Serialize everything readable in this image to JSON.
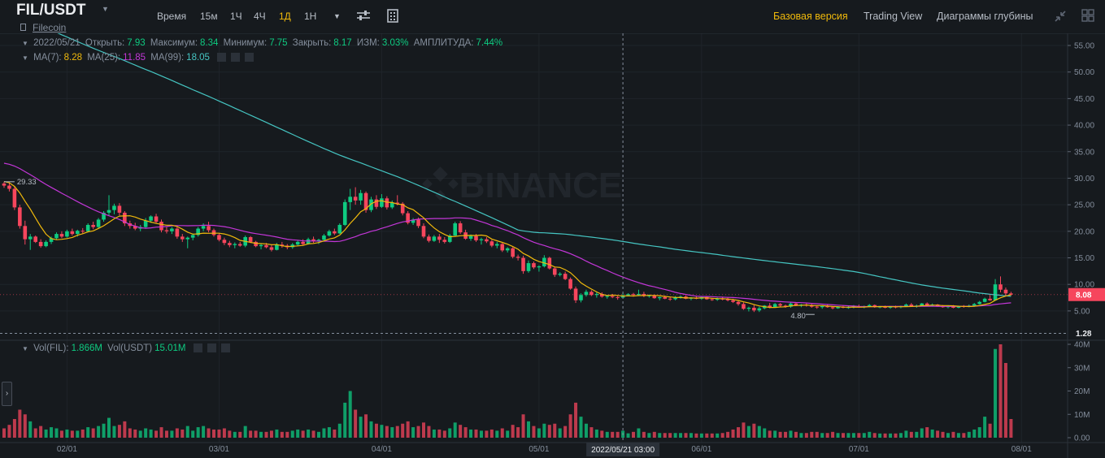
{
  "header": {
    "pair": "FIL/USDT",
    "coin_name": "Filecoin",
    "intervals": [
      "Время",
      "15м",
      "1Ч",
      "4Ч",
      "1Д",
      "1Н"
    ],
    "active_interval": "1Д",
    "views": [
      "Базовая версия",
      "Trading View",
      "Диаграммы глубины"
    ],
    "active_view": "Базовая версия"
  },
  "ohlc_legend": {
    "date": "2022/05/21",
    "open_label": "Открыть:",
    "open": "7.93",
    "high_label": "Максимум:",
    "high": "8.34",
    "low_label": "Минимум:",
    "low": "7.75",
    "close_label": "Закрыть:",
    "close": "8.17",
    "change_label": "ИЗМ:",
    "change": "3.03%",
    "amplitude_label": "АМПЛИТУДА:",
    "amplitude": "7.44%"
  },
  "ma_legend": {
    "ma7_label": "MA(7):",
    "ma7": "8.28",
    "ma25_label": "MA(25):",
    "ma25": "11.85",
    "ma99_label": "MA(99):",
    "ma99": "18.05"
  },
  "vol_legend": {
    "fil_label": "Vol(FIL):",
    "fil": "1.866M",
    "usdt_label": "Vol(USDT)",
    "usdt": "15.01M"
  },
  "watermark": "BINANCE",
  "colors": {
    "up": "#0ecb81",
    "down": "#f6465d",
    "ma7": "#f0b90b",
    "ma25": "#c336d8",
    "ma99": "#45c5c2",
    "accent": "#f0b90b",
    "background": "#161a1e"
  },
  "chart_data": {
    "type": "candlestick",
    "symbol": "FIL/USDT",
    "interval": "1D",
    "price_axis": {
      "min": 0,
      "max": 55,
      "ticks": [
        "55.00",
        "50.00",
        "45.00",
        "40.00",
        "35.00",
        "30.00",
        "25.00",
        "20.00",
        "15.00",
        "10.00",
        "5.00"
      ]
    },
    "volume_axis": {
      "max": 40,
      "unit": "M",
      "ticks": [
        "40M",
        "30M",
        "20M",
        "10M",
        "0.00"
      ]
    },
    "x_ticks": [
      "02/01",
      "03/01",
      "04/01",
      "05/01",
      "06/01",
      "07/01",
      "08/01"
    ],
    "crosshair_date": "2022/05/21 03:00",
    "last_price": "8.08",
    "low_line_value": "1.28",
    "annotations": [
      {
        "text": "29.33"
      },
      {
        "text": "4.80"
      }
    ],
    "candles": [
      [
        29.0,
        29.33,
        28.2,
        28.6,
        4.0
      ],
      [
        28.6,
        29.1,
        27.5,
        28.0,
        5.5
      ],
      [
        28.0,
        28.5,
        24.0,
        24.5,
        8.0
      ],
      [
        24.5,
        25.0,
        20.5,
        21.0,
        12.0
      ],
      [
        21.0,
        22.0,
        17.5,
        18.5,
        10.0
      ],
      [
        18.5,
        19.5,
        16.5,
        19.0,
        7.0
      ],
      [
        19.0,
        19.2,
        17.8,
        18.0,
        4.0
      ],
      [
        18.0,
        18.5,
        16.9,
        17.2,
        5.0
      ],
      [
        17.2,
        18.3,
        17.0,
        18.0,
        3.5
      ],
      [
        18.0,
        19.0,
        17.6,
        18.7,
        4.5
      ],
      [
        18.7,
        19.8,
        18.4,
        19.5,
        4.0
      ],
      [
        19.5,
        20.0,
        18.7,
        19.0,
        3.0
      ],
      [
        19.0,
        20.3,
        18.8,
        20.0,
        3.5
      ],
      [
        20.0,
        20.5,
        19.2,
        19.5,
        3.0
      ],
      [
        19.5,
        20.3,
        19.0,
        20.1,
        3.0
      ],
      [
        20.1,
        20.6,
        19.6,
        20.0,
        3.5
      ],
      [
        20.0,
        21.5,
        19.8,
        21.2,
        4.5
      ],
      [
        21.2,
        21.8,
        20.4,
        20.8,
        4.0
      ],
      [
        20.8,
        22.5,
        20.5,
        22.2,
        5.0
      ],
      [
        22.2,
        23.8,
        21.8,
        23.5,
        6.0
      ],
      [
        23.5,
        26.8,
        23.0,
        24.0,
        8.5
      ],
      [
        24.0,
        25.2,
        23.2,
        24.8,
        5.0
      ],
      [
        24.8,
        25.3,
        23.0,
        23.5,
        5.5
      ],
      [
        23.5,
        23.8,
        21.0,
        21.5,
        7.0
      ],
      [
        21.5,
        22.0,
        20.5,
        21.0,
        4.0
      ],
      [
        21.0,
        21.6,
        20.2,
        20.5,
        3.5
      ],
      [
        20.5,
        21.2,
        20.0,
        20.8,
        3.0
      ],
      [
        20.8,
        22.5,
        20.6,
        22.0,
        4.0
      ],
      [
        22.0,
        23.0,
        21.6,
        22.8,
        3.5
      ],
      [
        22.8,
        23.3,
        21.5,
        21.8,
        3.0
      ],
      [
        21.8,
        22.2,
        19.8,
        20.2,
        4.5
      ],
      [
        20.2,
        20.8,
        19.6,
        20.0,
        3.0
      ],
      [
        20.0,
        20.8,
        19.5,
        20.5,
        3.0
      ],
      [
        20.5,
        20.8,
        18.6,
        19.0,
        4.0
      ],
      [
        19.0,
        19.5,
        18.0,
        18.5,
        3.5
      ],
      [
        18.5,
        19.0,
        16.8,
        18.8,
        5.0
      ],
      [
        18.8,
        19.6,
        18.3,
        19.3,
        3.0
      ],
      [
        19.3,
        20.8,
        19.0,
        20.5,
        4.5
      ],
      [
        20.5,
        21.5,
        20.0,
        21.0,
        5.0
      ],
      [
        21.0,
        21.8,
        19.8,
        20.2,
        4.0
      ],
      [
        20.2,
        20.5,
        19.0,
        19.3,
        3.5
      ],
      [
        19.3,
        19.6,
        18.1,
        18.4,
        3.5
      ],
      [
        18.4,
        18.8,
        17.4,
        17.8,
        4.0
      ],
      [
        17.8,
        18.2,
        17.0,
        17.4,
        3.0
      ],
      [
        17.4,
        17.9,
        16.8,
        17.6,
        2.5
      ],
      [
        17.6,
        18.0,
        17.1,
        17.3,
        2.5
      ],
      [
        17.3,
        19.2,
        17.0,
        18.9,
        5.0
      ],
      [
        18.9,
        19.1,
        17.8,
        18.0,
        3.0
      ],
      [
        18.0,
        18.2,
        17.0,
        17.2,
        3.0
      ],
      [
        17.2,
        17.6,
        16.6,
        17.4,
        2.5
      ],
      [
        17.4,
        17.8,
        16.8,
        17.0,
        2.5
      ],
      [
        17.0,
        17.5,
        16.2,
        16.5,
        3.0
      ],
      [
        16.5,
        17.8,
        16.4,
        17.5,
        3.5
      ],
      [
        17.5,
        18.0,
        16.9,
        17.3,
        2.5
      ],
      [
        17.3,
        17.6,
        16.6,
        17.0,
        2.5
      ],
      [
        17.0,
        17.8,
        16.7,
        17.5,
        3.0
      ],
      [
        17.5,
        18.3,
        17.2,
        18.0,
        3.5
      ],
      [
        18.0,
        18.5,
        17.3,
        17.6,
        3.0
      ],
      [
        17.6,
        18.8,
        17.5,
        18.5,
        3.5
      ],
      [
        18.5,
        19.0,
        17.8,
        18.1,
        3.0
      ],
      [
        18.1,
        18.6,
        17.6,
        18.4,
        2.5
      ],
      [
        18.4,
        19.5,
        18.2,
        19.2,
        4.0
      ],
      [
        19.2,
        20.3,
        19.0,
        20.0,
        4.5
      ],
      [
        20.0,
        20.5,
        19.3,
        19.6,
        3.5
      ],
      [
        19.6,
        21.5,
        19.5,
        21.2,
        6.0
      ],
      [
        21.2,
        26.0,
        21.0,
        25.5,
        15.0
      ],
      [
        25.5,
        28.0,
        24.0,
        26.5,
        20.0
      ],
      [
        26.5,
        28.3,
        25.0,
        25.8,
        12.0
      ],
      [
        25.8,
        27.8,
        25.0,
        27.2,
        9.0
      ],
      [
        27.2,
        27.5,
        23.5,
        24.0,
        10.0
      ],
      [
        24.0,
        26.5,
        23.6,
        26.0,
        7.0
      ],
      [
        26.0,
        26.8,
        24.2,
        24.6,
        6.0
      ],
      [
        24.6,
        27.0,
        24.4,
        26.2,
        5.5
      ],
      [
        26.2,
        26.6,
        24.1,
        24.5,
        5.0
      ],
      [
        24.5,
        25.8,
        24.2,
        25.4,
        4.5
      ],
      [
        25.4,
        26.8,
        24.9,
        25.2,
        5.0
      ],
      [
        25.2,
        25.5,
        23.0,
        23.4,
        6.0
      ],
      [
        23.4,
        23.8,
        21.3,
        21.6,
        7.0
      ],
      [
        21.6,
        22.5,
        21.2,
        22.2,
        4.5
      ],
      [
        22.2,
        22.6,
        20.6,
        21.0,
        5.0
      ],
      [
        21.0,
        21.5,
        18.7,
        19.0,
        6.5
      ],
      [
        19.0,
        19.4,
        17.9,
        18.2,
        5.0
      ],
      [
        18.2,
        19.3,
        18.0,
        19.0,
        3.5
      ],
      [
        19.0,
        19.5,
        17.8,
        18.4,
        3.5
      ],
      [
        18.4,
        18.9,
        17.7,
        18.0,
        3.0
      ],
      [
        18.0,
        19.5,
        17.8,
        19.2,
        4.0
      ],
      [
        19.2,
        21.8,
        19.0,
        21.5,
        6.5
      ],
      [
        21.5,
        21.9,
        19.5,
        19.8,
        5.5
      ],
      [
        19.8,
        20.3,
        18.4,
        18.6,
        4.5
      ],
      [
        18.6,
        19.4,
        18.2,
        19.1,
        3.5
      ],
      [
        19.1,
        19.5,
        18.0,
        18.3,
        3.5
      ],
      [
        18.3,
        18.8,
        17.5,
        18.5,
        3.0
      ],
      [
        18.5,
        18.9,
        17.8,
        18.1,
        3.0
      ],
      [
        18.1,
        18.4,
        17.0,
        17.3,
        3.5
      ],
      [
        17.3,
        18.0,
        16.8,
        17.6,
        3.0
      ],
      [
        17.6,
        17.8,
        16.1,
        16.4,
        4.0
      ],
      [
        16.4,
        17.0,
        16.0,
        16.8,
        3.0
      ],
      [
        16.8,
        17.0,
        14.9,
        15.2,
        5.5
      ],
      [
        15.2,
        15.6,
        14.5,
        15.0,
        4.5
      ],
      [
        15.0,
        15.4,
        12.0,
        12.5,
        10.0
      ],
      [
        12.5,
        14.5,
        12.2,
        14.0,
        7.0
      ],
      [
        14.0,
        14.3,
        12.9,
        13.2,
        5.0
      ],
      [
        13.2,
        13.6,
        12.4,
        13.4,
        4.0
      ],
      [
        13.4,
        15.5,
        13.2,
        15.0,
        6.0
      ],
      [
        15.0,
        15.2,
        12.8,
        13.0,
        5.5
      ],
      [
        13.0,
        13.3,
        11.4,
        11.8,
        6.0
      ],
      [
        11.8,
        12.3,
        11.5,
        12.0,
        4.0
      ],
      [
        12.0,
        12.4,
        10.8,
        11.0,
        5.0
      ],
      [
        11.0,
        11.3,
        9.0,
        9.2,
        10.0
      ],
      [
        9.2,
        9.6,
        6.5,
        7.0,
        15.0
      ],
      [
        7.0,
        8.3,
        6.6,
        8.0,
        9.0
      ],
      [
        8.0,
        9.0,
        7.7,
        8.6,
        6.0
      ],
      [
        8.6,
        8.9,
        7.8,
        8.0,
        4.5
      ],
      [
        8.0,
        8.5,
        7.5,
        8.2,
        3.5
      ],
      [
        8.2,
        8.5,
        7.5,
        7.7,
        3.0
      ],
      [
        7.7,
        8.0,
        7.3,
        7.8,
        2.5
      ],
      [
        7.8,
        8.2,
        7.4,
        7.6,
        2.5
      ],
      [
        7.6,
        7.9,
        7.1,
        7.5,
        2.5
      ],
      [
        7.5,
        8.34,
        7.4,
        7.93,
        3.0
      ],
      [
        7.93,
        8.34,
        7.75,
        8.17,
        1.866
      ],
      [
        8.17,
        8.4,
        7.7,
        8.0,
        2.5
      ],
      [
        8.0,
        9.0,
        7.8,
        8.2,
        4.0
      ],
      [
        8.2,
        8.6,
        7.6,
        7.8,
        2.5
      ],
      [
        7.8,
        8.1,
        7.5,
        7.9,
        2.0
      ],
      [
        7.9,
        8.1,
        7.3,
        7.4,
        2.5
      ],
      [
        7.4,
        7.7,
        7.0,
        7.6,
        2.0
      ],
      [
        7.6,
        7.9,
        7.2,
        7.3,
        2.0
      ],
      [
        7.3,
        7.6,
        6.9,
        7.2,
        2.0
      ],
      [
        7.2,
        7.8,
        7.0,
        7.6,
        2.0
      ],
      [
        7.6,
        7.9,
        7.3,
        7.7,
        2.0
      ],
      [
        7.7,
        7.9,
        7.2,
        7.3,
        2.0
      ],
      [
        7.3,
        7.6,
        7.0,
        7.5,
        2.0
      ],
      [
        7.5,
        7.8,
        7.2,
        7.3,
        1.8
      ],
      [
        7.3,
        7.7,
        7.1,
        7.6,
        1.8
      ],
      [
        7.6,
        7.8,
        7.1,
        7.2,
        1.8
      ],
      [
        7.2,
        7.4,
        6.9,
        7.1,
        1.8
      ],
      [
        7.1,
        7.5,
        6.9,
        7.3,
        1.8
      ],
      [
        7.3,
        7.6,
        7.0,
        7.2,
        2.0
      ],
      [
        7.2,
        7.5,
        6.8,
        7.0,
        2.5
      ],
      [
        7.0,
        7.3,
        6.5,
        6.7,
        3.5
      ],
      [
        6.7,
        7.0,
        6.0,
        6.3,
        4.5
      ],
      [
        6.3,
        6.6,
        5.2,
        5.4,
        6.5
      ],
      [
        5.4,
        5.8,
        4.9,
        5.6,
        5.0
      ],
      [
        5.6,
        6.2,
        4.8,
        5.1,
        6.0
      ],
      [
        5.1,
        5.8,
        4.8,
        5.5,
        5.0
      ],
      [
        5.5,
        6.1,
        5.3,
        6.0,
        4.0
      ],
      [
        6.0,
        6.5,
        5.5,
        5.7,
        3.0
      ],
      [
        5.7,
        6.5,
        5.6,
        6.3,
        3.0
      ],
      [
        6.3,
        6.5,
        5.8,
        6.0,
        2.5
      ],
      [
        6.0,
        6.2,
        5.6,
        5.8,
        2.5
      ],
      [
        5.8,
        6.6,
        5.6,
        6.4,
        3.0
      ],
      [
        6.4,
        6.6,
        5.9,
        6.0,
        2.5
      ],
      [
        6.0,
        6.3,
        5.7,
        6.2,
        2.0
      ],
      [
        6.2,
        6.5,
        5.8,
        6.1,
        2.0
      ],
      [
        6.1,
        6.3,
        5.6,
        5.8,
        2.5
      ],
      [
        5.8,
        6.0,
        5.4,
        5.7,
        2.5
      ],
      [
        5.7,
        6.0,
        5.4,
        5.9,
        2.0
      ],
      [
        5.9,
        6.2,
        5.6,
        5.7,
        2.0
      ],
      [
        5.7,
        5.9,
        5.3,
        5.5,
        2.5
      ],
      [
        5.5,
        5.9,
        5.4,
        5.8,
        2.0
      ],
      [
        5.8,
        6.0,
        5.5,
        5.6,
        2.0
      ],
      [
        5.6,
        5.9,
        5.4,
        5.7,
        2.0
      ],
      [
        5.7,
        6.1,
        5.5,
        5.9,
        2.0
      ],
      [
        5.9,
        6.2,
        5.6,
        5.7,
        2.0
      ],
      [
        5.7,
        6.0,
        5.5,
        5.9,
        2.0
      ],
      [
        5.9,
        6.3,
        5.7,
        6.1,
        2.5
      ],
      [
        6.1,
        6.2,
        5.6,
        5.7,
        2.0
      ],
      [
        5.7,
        5.9,
        5.5,
        5.8,
        1.8
      ],
      [
        5.8,
        6.0,
        5.5,
        5.6,
        1.8
      ],
      [
        5.6,
        5.9,
        5.4,
        5.8,
        1.8
      ],
      [
        5.8,
        6.0,
        5.5,
        5.7,
        1.8
      ],
      [
        5.7,
        6.0,
        5.5,
        5.9,
        2.0
      ],
      [
        5.9,
        6.4,
        5.8,
        6.2,
        3.0
      ],
      [
        6.2,
        6.5,
        5.8,
        5.9,
        2.5
      ],
      [
        5.9,
        6.2,
        5.6,
        6.0,
        2.5
      ],
      [
        6.0,
        6.5,
        5.9,
        6.4,
        4.0
      ],
      [
        6.4,
        6.6,
        5.9,
        6.0,
        4.5
      ],
      [
        6.0,
        6.4,
        5.8,
        6.2,
        3.5
      ],
      [
        6.2,
        6.3,
        5.8,
        5.9,
        3.0
      ],
      [
        5.9,
        6.1,
        5.6,
        5.7,
        2.5
      ],
      [
        5.7,
        6.0,
        5.5,
        5.9,
        2.0
      ],
      [
        5.9,
        6.1,
        5.5,
        5.6,
        2.5
      ],
      [
        5.6,
        6.0,
        5.5,
        5.9,
        2.0
      ],
      [
        5.9,
        6.1,
        5.6,
        5.8,
        2.0
      ],
      [
        5.8,
        6.2,
        5.7,
        6.0,
        2.5
      ],
      [
        6.0,
        6.5,
        5.9,
        6.3,
        3.5
      ],
      [
        6.3,
        6.9,
        6.2,
        6.7,
        4.5
      ],
      [
        6.7,
        7.5,
        6.6,
        7.3,
        9.0
      ],
      [
        7.3,
        8.0,
        6.9,
        7.0,
        6.0
      ],
      [
        7.0,
        11.0,
        6.9,
        10.0,
        38.0
      ],
      [
        10.0,
        11.5,
        8.5,
        9.0,
        40.0
      ],
      [
        9.0,
        9.4,
        7.8,
        8.3,
        32.0
      ],
      [
        8.3,
        8.6,
        7.9,
        8.08,
        8.0
      ]
    ]
  }
}
